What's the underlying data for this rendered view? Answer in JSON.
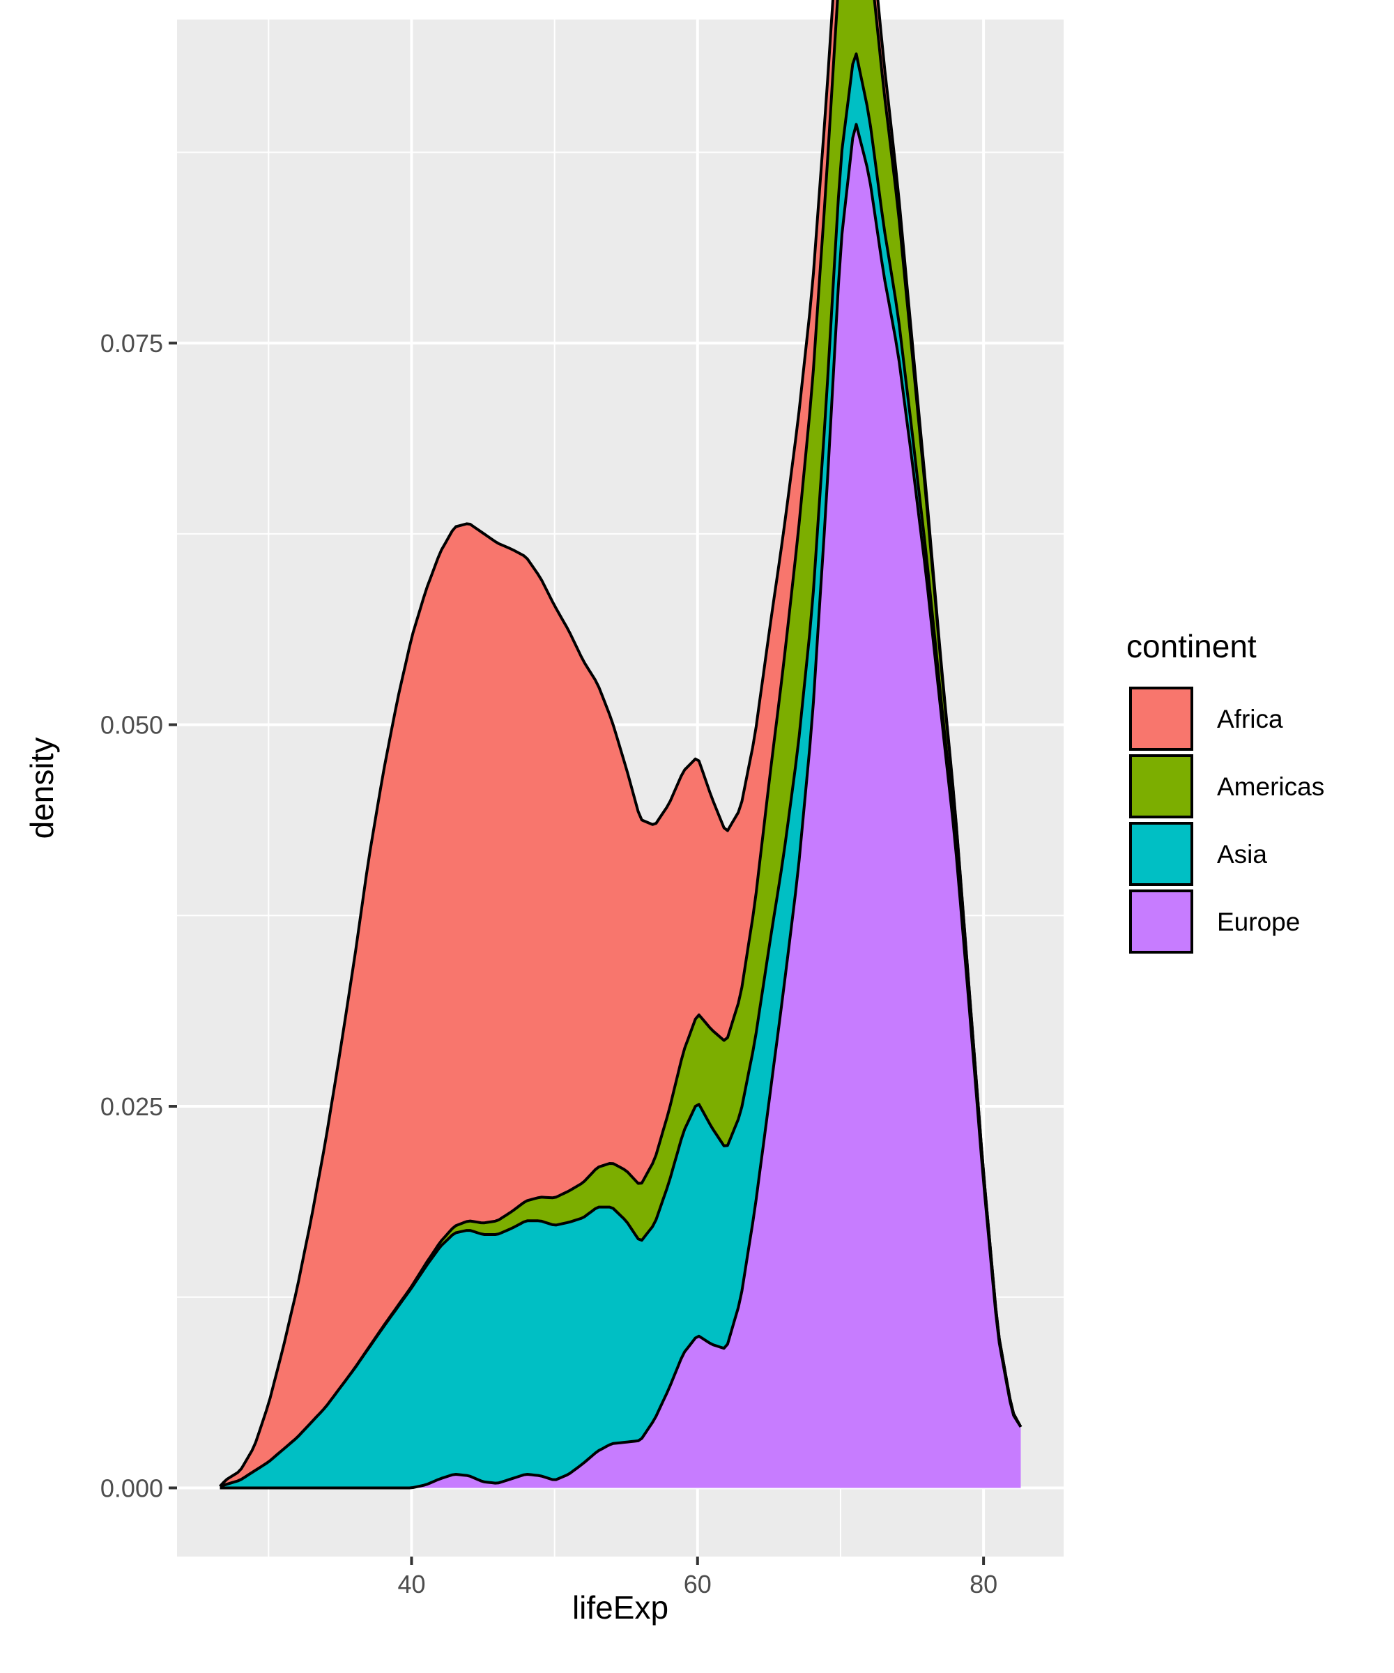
{
  "chart_data": {
    "type": "area",
    "subtype": "stacked-density",
    "xlabel": "lifeExp",
    "ylabel": "density",
    "xlim": [
      23.6,
      85.6
    ],
    "ylim": [
      -0.0045,
      0.0962
    ],
    "x_ticks": [
      40,
      60,
      80
    ],
    "x_tick_labels": [
      "40",
      "60",
      "80"
    ],
    "x_minor_ticks": [
      30,
      50,
      70
    ],
    "y_ticks": [
      0,
      0.025,
      0.05,
      0.075
    ],
    "y_tick_labels": [
      "0.000",
      "0.025",
      "0.050",
      "0.075"
    ],
    "y_minor_ticks": [
      0.0125,
      0.0375,
      0.0625,
      0.0875
    ],
    "grid": true,
    "legend": {
      "title": "continent",
      "position": "right"
    },
    "series": [
      {
        "name": "Africa",
        "color": "#F8766D",
        "points": [
          [
            26.6,
            0
          ],
          [
            27,
            0.0003
          ],
          [
            28,
            0.0006
          ],
          [
            29,
            0.0016
          ],
          [
            30,
            0.0038
          ],
          [
            31,
            0.0066
          ],
          [
            32,
            0.0098
          ],
          [
            33,
            0.0134
          ],
          [
            34,
            0.0175
          ],
          [
            35,
            0.022
          ],
          [
            36,
            0.0268
          ],
          [
            37,
            0.032
          ],
          [
            38,
            0.0362
          ],
          [
            39,
            0.0397
          ],
          [
            40,
            0.0425
          ],
          [
            41,
            0.0441
          ],
          [
            42,
            0.0452
          ],
          [
            43,
            0.0458
          ],
          [
            44,
            0.0457
          ],
          [
            45,
            0.0452
          ],
          [
            46,
            0.0444
          ],
          [
            47,
            0.0434
          ],
          [
            48,
            0.0422
          ],
          [
            49,
            0.0406
          ],
          [
            50,
            0.0388
          ],
          [
            51,
            0.0367
          ],
          [
            52,
            0.0342
          ],
          [
            53,
            0.0317
          ],
          [
            54,
            0.029
          ],
          [
            55,
            0.0264
          ],
          [
            56,
            0.024
          ],
          [
            57,
            0.0219
          ],
          [
            58,
            0.0201
          ],
          [
            59,
            0.0184
          ],
          [
            60,
            0.0168
          ],
          [
            61,
            0.0152
          ],
          [
            62,
            0.0137
          ],
          [
            63,
            0.0123
          ],
          [
            64,
            0.011
          ],
          [
            65,
            0.0098
          ],
          [
            66,
            0.0087
          ],
          [
            67,
            0.0075
          ],
          [
            68,
            0.0064
          ],
          [
            69,
            0.0053
          ],
          [
            70,
            0.0043
          ],
          [
            71,
            0.0034
          ],
          [
            72,
            0.0026
          ],
          [
            73,
            0.0019
          ],
          [
            74,
            0.0013
          ],
          [
            75,
            0.0008
          ],
          [
            76,
            0.0005
          ],
          [
            77,
            0.0002
          ],
          [
            78,
            0.0001
          ],
          [
            79,
            5e-05
          ],
          [
            80,
            0
          ],
          [
            82.6,
            0
          ]
        ]
      },
      {
        "name": "Americas",
        "color": "#7CAE00",
        "points": [
          [
            26.6,
            0
          ],
          [
            35,
            0
          ],
          [
            40,
            0.0001
          ],
          [
            42,
            0.0003
          ],
          [
            44,
            0.0006
          ],
          [
            46,
            0.0009
          ],
          [
            48,
            0.0013
          ],
          [
            50,
            0.0018
          ],
          [
            52,
            0.0023
          ],
          [
            54,
            0.0029
          ],
          [
            56,
            0.0037
          ],
          [
            58,
            0.0047
          ],
          [
            60,
            0.0058
          ],
          [
            62,
            0.007
          ],
          [
            63,
            0.0077
          ],
          [
            64,
            0.009
          ],
          [
            65,
            0.0108
          ],
          [
            66,
            0.0125
          ],
          [
            67,
            0.0139
          ],
          [
            68,
            0.0145
          ],
          [
            69,
            0.0145
          ],
          [
            70,
            0.0138
          ],
          [
            71,
            0.0126
          ],
          [
            72,
            0.0109
          ],
          [
            73,
            0.009
          ],
          [
            74,
            0.007
          ],
          [
            75,
            0.0052
          ],
          [
            76,
            0.0036
          ],
          [
            77,
            0.0023
          ],
          [
            78,
            0.0014
          ],
          [
            79,
            0.0008
          ],
          [
            80,
            0.0004
          ],
          [
            81,
            0.0002
          ],
          [
            82,
            0.0001
          ],
          [
            82.6,
            0
          ]
        ]
      },
      {
        "name": "Asia",
        "color": "#00BFC4",
        "points": [
          [
            26.6,
            0.0001
          ],
          [
            28,
            0.0005
          ],
          [
            30,
            0.0017
          ],
          [
            32,
            0.0033
          ],
          [
            34,
            0.0053
          ],
          [
            36,
            0.0078
          ],
          [
            38,
            0.0105
          ],
          [
            40,
            0.0131
          ],
          [
            41,
            0.0143
          ],
          [
            42,
            0.0152
          ],
          [
            43,
            0.0158
          ],
          [
            44,
            0.0161
          ],
          [
            45,
            0.0162
          ],
          [
            46,
            0.0163
          ],
          [
            47,
            0.0164
          ],
          [
            48,
            0.0166
          ],
          [
            49,
            0.0167
          ],
          [
            50,
            0.0167
          ],
          [
            51,
            0.0165
          ],
          [
            52,
            0.0161
          ],
          [
            53,
            0.016
          ],
          [
            54,
            0.0155
          ],
          [
            55,
            0.0145
          ],
          [
            56,
            0.013
          ],
          [
            57,
            0.0128
          ],
          [
            58,
            0.0135
          ],
          [
            59,
            0.0145
          ],
          [
            60,
            0.0153
          ],
          [
            61,
            0.0142
          ],
          [
            62,
            0.0131
          ],
          [
            63,
            0.0122
          ],
          [
            64,
            0.011
          ],
          [
            65,
            0.0101
          ],
          [
            66,
            0.0088
          ],
          [
            67,
            0.0082
          ],
          [
            68,
            0.0074
          ],
          [
            69,
            0.0065
          ],
          [
            70,
            0.0056
          ],
          [
            71,
            0.0047
          ],
          [
            72,
            0.0039
          ],
          [
            73,
            0.0032
          ],
          [
            74,
            0.0025
          ],
          [
            75,
            0.0019
          ],
          [
            76,
            0.0014
          ],
          [
            77,
            0.0009
          ],
          [
            78,
            0.0006
          ],
          [
            79,
            0.0003
          ],
          [
            80,
            0.0002
          ],
          [
            81,
            0.0001
          ],
          [
            82.6,
            0
          ]
        ]
      },
      {
        "name": "Europe",
        "color": "#C77CFF",
        "points": [
          [
            26.6,
            0
          ],
          [
            40,
            0
          ],
          [
            41,
            0.0002
          ],
          [
            42,
            0.0006
          ],
          [
            43,
            0.0009
          ],
          [
            44,
            0.0008
          ],
          [
            45,
            0.0004
          ],
          [
            46,
            0.0003
          ],
          [
            47,
            0.0006
          ],
          [
            48,
            0.0009
          ],
          [
            49,
            0.0008
          ],
          [
            50,
            0.0005
          ],
          [
            51,
            0.0009
          ],
          [
            52,
            0.0016
          ],
          [
            53,
            0.0024
          ],
          [
            54,
            0.0029
          ],
          [
            55,
            0.003
          ],
          [
            56,
            0.0031
          ],
          [
            57,
            0.0045
          ],
          [
            58,
            0.0065
          ],
          [
            59,
            0.0088
          ],
          [
            60,
            0.01
          ],
          [
            61,
            0.0094
          ],
          [
            62,
            0.0091
          ],
          [
            63,
            0.0123
          ],
          [
            64,
            0.0182
          ],
          [
            65,
            0.0253
          ],
          [
            66,
            0.0325
          ],
          [
            67,
            0.0401
          ],
          [
            68,
            0.05
          ],
          [
            69,
            0.0646
          ],
          [
            70,
            0.0813
          ],
          [
            71,
            0.0897
          ],
          [
            72,
            0.086
          ],
          [
            73,
            0.0796
          ],
          [
            74,
            0.0745
          ],
          [
            75,
            0.0673
          ],
          [
            76,
            0.0597
          ],
          [
            77,
            0.051
          ],
          [
            78,
            0.0425
          ],
          [
            79,
            0.0315
          ],
          [
            80,
            0.02
          ],
          [
            81,
            0.01
          ],
          [
            82,
            0.0049
          ],
          [
            82.6,
            0.004
          ]
        ]
      }
    ]
  }
}
